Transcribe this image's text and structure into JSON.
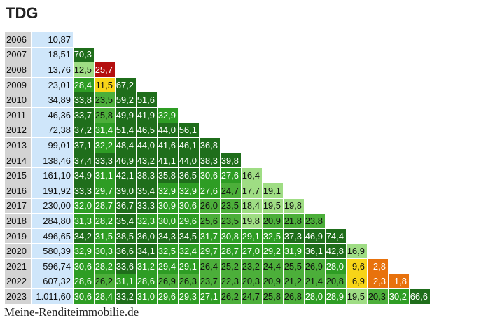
{
  "title": "TDG",
  "footer": "Meine-Renditeimmobilie.de",
  "colors": {
    "year_bg": "#d3d3d3",
    "price_bg": "#cfe6fa",
    "strong_green": "#1f6e1b",
    "green": "#2e9d24",
    "mid_green": "#4caf3a",
    "light_green": "#9fdd84",
    "yellow": "#f7d418",
    "orange": "#e8720c",
    "red": "#b40f0f"
  },
  "chart_data": {
    "type": "table",
    "title": "TDG",
    "years": [
      "2006",
      "2007",
      "2008",
      "2009",
      "2010",
      "2011",
      "2012",
      "2013",
      "2014",
      "2015",
      "2016",
      "2017",
      "2018",
      "2019",
      "2020",
      "2021",
      "2022",
      "2023"
    ],
    "prices": [
      "10,87",
      "18,51",
      "13,76",
      "23,01",
      "34,89",
      "46,36",
      "72,38",
      "99,01",
      "138,46",
      "161,10",
      "191,92",
      "230,00",
      "284,80",
      "496,65",
      "580,39",
      "596,74",
      "607,32",
      "1.011,60"
    ],
    "returns": [
      [],
      [
        "70,3"
      ],
      [
        "12,5",
        "-25,7"
      ],
      [
        "28,4",
        "11,5",
        "67,2"
      ],
      [
        "33,8",
        "23,5",
        "59,2",
        "51,6"
      ],
      [
        "33,7",
        "25,8",
        "49,9",
        "41,9",
        "32,9"
      ],
      [
        "37,2",
        "31,4",
        "51,4",
        "46,5",
        "44,0",
        "56,1"
      ],
      [
        "37,1",
        "32,2",
        "48,4",
        "44,0",
        "41,6",
        "46,1",
        "36,8"
      ],
      [
        "37,4",
        "33,3",
        "46,9",
        "43,2",
        "41,1",
        "44,0",
        "38,3",
        "39,8"
      ],
      [
        "34,9",
        "31,1",
        "42,1",
        "38,3",
        "35,8",
        "36,5",
        "30,6",
        "27,6",
        "16,4"
      ],
      [
        "33,3",
        "29,7",
        "39,0",
        "35,4",
        "32,9",
        "32,9",
        "27,6",
        "24,7",
        "17,7",
        "19,1"
      ],
      [
        "32,0",
        "28,7",
        "36,7",
        "33,3",
        "30,9",
        "30,6",
        "26,0",
        "23,5",
        "18,4",
        "19,5",
        "19,8"
      ],
      [
        "31,3",
        "28,2",
        "35,4",
        "32,3",
        "30,0",
        "29,6",
        "25,6",
        "23,5",
        "19,8",
        "20,9",
        "21,8",
        "23,8"
      ],
      [
        "34,2",
        "31,5",
        "38,5",
        "36,0",
        "34,3",
        "34,5",
        "31,7",
        "30,8",
        "29,1",
        "32,5",
        "37,3",
        "46,9",
        "74,4"
      ],
      [
        "32,9",
        "30,3",
        "36,6",
        "34,1",
        "32,5",
        "32,4",
        "29,7",
        "28,7",
        "27,0",
        "29,2",
        "31,9",
        "36,1",
        "42,8",
        "16,9"
      ],
      [
        "30,6",
        "28,2",
        "33,6",
        "31,2",
        "29,4",
        "29,1",
        "26,4",
        "25,2",
        "23,2",
        "24,4",
        "25,5",
        "26,9",
        "28,0",
        "9,6",
        "2,8"
      ],
      [
        "28,6",
        "26,2",
        "31,1",
        "28,6",
        "26,9",
        "26,3",
        "23,7",
        "22,3",
        "20,3",
        "20,9",
        "21,2",
        "21,4",
        "20,8",
        "6,9",
        "2,3",
        "1,8"
      ],
      [
        "30,6",
        "28,4",
        "33,2",
        "31,0",
        "29,6",
        "29,3",
        "27,1",
        "26,2",
        "24,7",
        "25,8",
        "26,8",
        "28,0",
        "28,9",
        "19,5",
        "20,3",
        "30,2",
        "66,6"
      ]
    ]
  }
}
